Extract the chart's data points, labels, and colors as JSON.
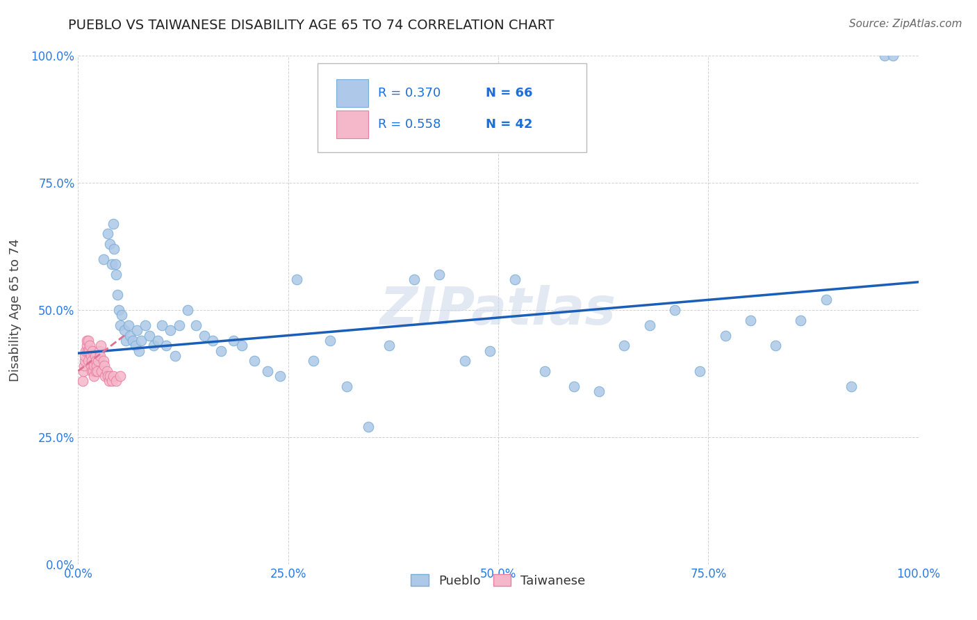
{
  "title": "PUEBLO VS TAIWANESE DISABILITY AGE 65 TO 74 CORRELATION CHART",
  "source": "Source: ZipAtlas.com",
  "ylabel": "Disability Age 65 to 74",
  "xlim": [
    0.0,
    1.0
  ],
  "ylim": [
    0.0,
    1.0
  ],
  "xticks": [
    0.0,
    0.25,
    0.5,
    0.75,
    1.0
  ],
  "yticks": [
    0.0,
    0.25,
    0.5,
    0.75,
    1.0
  ],
  "xticklabels": [
    "0.0%",
    "25.0%",
    "50.0%",
    "75.0%",
    "100.0%"
  ],
  "yticklabels": [
    "0.0%",
    "25.0%",
    "50.0%",
    "75.0%",
    "100.0%"
  ],
  "pueblo_color": "#adc8e8",
  "pueblo_edge_color": "#7aadd4",
  "taiwanese_color": "#f5b8cb",
  "taiwanese_edge_color": "#e87fa0",
  "trend_blue_color": "#1a5eb8",
  "trend_pink_color": "#e07090",
  "legend_r_color": "#1a6fdb",
  "legend_n_color": "#1a6fdb",
  "legend_r_pueblo": "R = 0.370",
  "legend_n_pueblo": "N = 66",
  "legend_r_taiwanese": "R = 0.558",
  "legend_n_taiwanese": "N = 42",
  "watermark": "ZIPatlas",
  "pueblo_scatter_x": [
    0.03,
    0.035,
    0.038,
    0.04,
    0.042,
    0.043,
    0.044,
    0.045,
    0.047,
    0.048,
    0.05,
    0.052,
    0.055,
    0.057,
    0.06,
    0.062,
    0.065,
    0.068,
    0.07,
    0.072,
    0.075,
    0.08,
    0.085,
    0.09,
    0.095,
    0.1,
    0.105,
    0.11,
    0.115,
    0.12,
    0.13,
    0.14,
    0.15,
    0.16,
    0.17,
    0.185,
    0.195,
    0.21,
    0.225,
    0.24,
    0.26,
    0.28,
    0.3,
    0.32,
    0.345,
    0.37,
    0.4,
    0.43,
    0.46,
    0.49,
    0.52,
    0.555,
    0.59,
    0.62,
    0.65,
    0.68,
    0.71,
    0.74,
    0.77,
    0.8,
    0.83,
    0.86,
    0.89,
    0.92,
    0.96,
    0.97
  ],
  "pueblo_scatter_y": [
    0.6,
    0.65,
    0.63,
    0.59,
    0.67,
    0.62,
    0.59,
    0.57,
    0.53,
    0.5,
    0.47,
    0.49,
    0.46,
    0.44,
    0.47,
    0.45,
    0.44,
    0.43,
    0.46,
    0.42,
    0.44,
    0.47,
    0.45,
    0.43,
    0.44,
    0.47,
    0.43,
    0.46,
    0.41,
    0.47,
    0.5,
    0.47,
    0.45,
    0.44,
    0.42,
    0.44,
    0.43,
    0.4,
    0.38,
    0.37,
    0.56,
    0.4,
    0.44,
    0.35,
    0.27,
    0.43,
    0.56,
    0.57,
    0.4,
    0.42,
    0.56,
    0.38,
    0.35,
    0.34,
    0.43,
    0.47,
    0.5,
    0.38,
    0.45,
    0.48,
    0.43,
    0.48,
    0.52,
    0.35,
    1.0,
    1.0
  ],
  "taiwanese_scatter_x": [
    0.005,
    0.006,
    0.007,
    0.008,
    0.008,
    0.009,
    0.01,
    0.01,
    0.011,
    0.012,
    0.012,
    0.013,
    0.014,
    0.015,
    0.015,
    0.016,
    0.016,
    0.017,
    0.018,
    0.019,
    0.019,
    0.02,
    0.021,
    0.021,
    0.022,
    0.023,
    0.024,
    0.025,
    0.026,
    0.027,
    0.028,
    0.03,
    0.031,
    0.032,
    0.034,
    0.035,
    0.037,
    0.038,
    0.04,
    0.042,
    0.045,
    0.05
  ],
  "taiwanese_scatter_y": [
    0.36,
    0.38,
    0.39,
    0.4,
    0.41,
    0.42,
    0.43,
    0.44,
    0.42,
    0.44,
    0.4,
    0.42,
    0.43,
    0.41,
    0.39,
    0.38,
    0.4,
    0.42,
    0.38,
    0.37,
    0.39,
    0.41,
    0.38,
    0.4,
    0.39,
    0.38,
    0.4,
    0.42,
    0.41,
    0.43,
    0.38,
    0.4,
    0.39,
    0.37,
    0.38,
    0.37,
    0.36,
    0.37,
    0.36,
    0.37,
    0.36,
    0.37
  ],
  "pueblo_trend_x": [
    0.0,
    1.0
  ],
  "pueblo_trend_y": [
    0.415,
    0.555
  ],
  "taiwanese_trend_x": [
    0.0,
    0.055
  ],
  "taiwanese_trend_y": [
    0.38,
    0.45
  ],
  "background_color": "#ffffff",
  "grid_color": "#cccccc"
}
